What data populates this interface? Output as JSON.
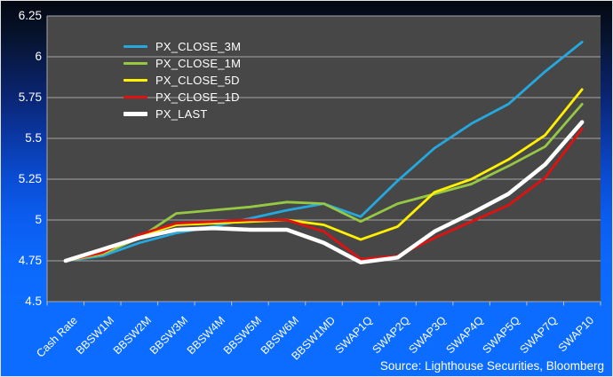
{
  "chart_data": {
    "type": "line",
    "title": "",
    "xlabel": "",
    "ylabel": "",
    "grid": true,
    "legend_position": "upper-left-inside",
    "ylim": [
      4.5,
      6.25
    ],
    "ytick_step": 0.25,
    "yticks": [
      {
        "label": "6.25",
        "value": 6.25
      },
      {
        "label": "6",
        "value": 6.0
      },
      {
        "label": "5.75",
        "value": 5.75
      },
      {
        "label": "5.5",
        "value": 5.5
      },
      {
        "label": "5.25",
        "value": 5.25
      },
      {
        "label": "5",
        "value": 5.0
      },
      {
        "label": "4.75",
        "value": 4.75
      },
      {
        "label": "4.5",
        "value": 4.5
      }
    ],
    "categories": [
      "Cash Rate",
      "BBSW1M",
      "BBSW2M",
      "BBSW3M",
      "BBSW4M",
      "BBSW5M",
      "BBSW6M",
      "BBSW1MD",
      "SWAP1Q",
      "SWAP2Q",
      "SWAP3Q",
      "SWAP4Q",
      "SWAP5Q",
      "SWAP7Q",
      "SWAP10"
    ],
    "series": [
      {
        "name": "PX_CLOSE_3M",
        "color": "#25A8DE",
        "values": [
          4.75,
          4.78,
          4.86,
          4.92,
          4.96,
          5.01,
          5.06,
          5.1,
          5.02,
          5.24,
          5.44,
          5.59,
          5.71,
          5.91,
          6.09
        ]
      },
      {
        "name": "PX_CLOSE_1M",
        "color": "#97C844",
        "values": [
          4.75,
          4.79,
          4.89,
          5.04,
          5.06,
          5.08,
          5.11,
          5.1,
          4.99,
          5.1,
          5.16,
          5.22,
          5.33,
          5.45,
          5.71
        ]
      },
      {
        "name": "PX_CLOSE_5D",
        "color": "#FFF100",
        "values": [
          4.75,
          4.8,
          4.9,
          4.97,
          4.98,
          4.99,
          5.0,
          4.97,
          4.88,
          4.96,
          5.17,
          5.25,
          5.37,
          5.52,
          5.8
        ]
      },
      {
        "name": "PX_CLOSE_1D",
        "color": "#DF1111",
        "values": [
          4.75,
          4.8,
          4.91,
          4.98,
          4.99,
          5.0,
          5.0,
          4.93,
          4.76,
          4.78,
          4.89,
          4.99,
          5.09,
          5.26,
          5.56
        ]
      },
      {
        "name": "PX_LAST",
        "color": "#FFFFFF",
        "values": [
          4.75,
          4.82,
          4.89,
          4.94,
          4.95,
          4.94,
          4.94,
          4.86,
          4.74,
          4.77,
          4.93,
          5.04,
          5.16,
          5.34,
          5.6
        ]
      }
    ],
    "source_note": "Source: Lighthouse Securities, Bloomberg"
  },
  "colors": {
    "plot_background": "#474747",
    "gridline": "#A6A6A6",
    "tick": "#C0C0C0",
    "text": "#FFFFFF",
    "page_background_top": "#030710",
    "page_background_bottom": "#0C6CFF"
  }
}
